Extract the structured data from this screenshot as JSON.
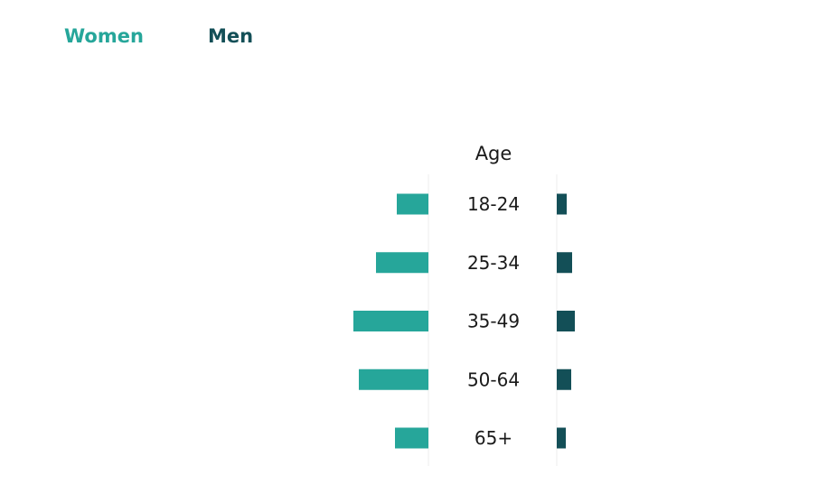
{
  "legend": {
    "women_label": "Women",
    "men_label": "Men"
  },
  "colors": {
    "women": "#26a69a",
    "men": "#134f57",
    "grid": "#ececec",
    "text": "#1a1a1a"
  },
  "chart_data": {
    "type": "bar",
    "layout": "population-pyramid",
    "category_header": "Age",
    "categories": [
      "18-24",
      "25-34",
      "35-49",
      "50-64",
      "65+"
    ],
    "series": [
      {
        "name": "Women",
        "values": [
          35,
          58,
          83,
          77,
          37
        ]
      },
      {
        "name": "Men",
        "values": [
          11,
          17,
          20,
          16,
          10
        ]
      }
    ],
    "xlim": [
      0,
      100
    ],
    "grid": false,
    "legend_position": "top-left"
  }
}
